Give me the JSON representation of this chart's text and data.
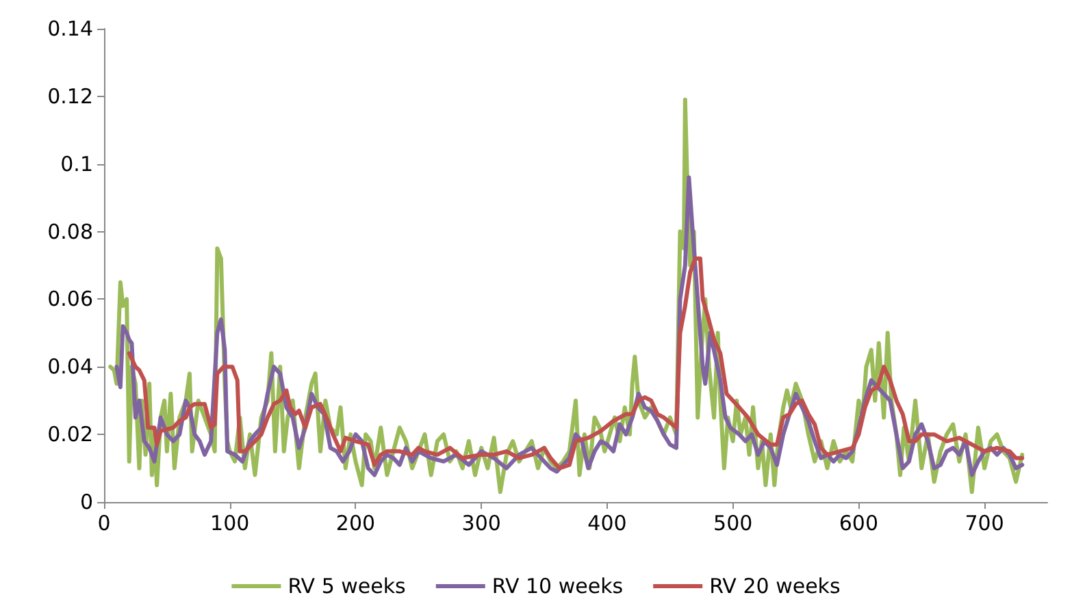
{
  "chart_data": {
    "type": "line",
    "legend": "bottom",
    "grid": false,
    "marker": "none",
    "line_style": "solid",
    "xlim": [
      0,
      750
    ],
    "xticks": [
      0,
      100,
      200,
      300,
      400,
      500,
      600,
      700
    ],
    "ylim": [
      0,
      0.14
    ],
    "yticks": [
      0,
      0.02,
      0.04,
      0.06,
      0.08,
      0.1,
      0.12,
      0.14
    ],
    "series": [
      {
        "name": "RV 5 weeks",
        "color": "#9bbb59",
        "x": [
          5,
          8,
          10,
          13,
          15,
          18,
          20,
          22,
          25,
          28,
          30,
          33,
          36,
          38,
          40,
          42,
          45,
          48,
          50,
          53,
          56,
          60,
          65,
          68,
          70,
          75,
          80,
          85,
          88,
          90,
          93,
          96,
          98,
          100,
          104,
          108,
          112,
          116,
          120,
          125,
          130,
          133,
          136,
          140,
          143,
          146,
          150,
          155,
          160,
          165,
          168,
          172,
          176,
          180,
          185,
          188,
          192,
          196,
          200,
          205,
          208,
          212,
          215,
          220,
          225,
          230,
          235,
          240,
          245,
          250,
          255,
          260,
          265,
          270,
          275,
          280,
          285,
          290,
          295,
          300,
          305,
          310,
          315,
          320,
          325,
          330,
          335,
          340,
          345,
          350,
          355,
          360,
          365,
          370,
          375,
          378,
          382,
          386,
          390,
          394,
          398,
          402,
          406,
          410,
          414,
          418,
          420,
          422,
          425,
          430,
          435,
          440,
          445,
          450,
          455,
          458,
          461,
          462,
          464,
          466,
          469,
          472,
          475,
          478,
          481,
          485,
          488,
          490,
          493,
          496,
          500,
          503,
          506,
          510,
          513,
          516,
          520,
          523,
          526,
          530,
          533,
          536,
          540,
          543,
          546,
          550,
          555,
          560,
          565,
          570,
          575,
          580,
          585,
          590,
          595,
          600,
          603,
          606,
          610,
          613,
          616,
          620,
          623,
          626,
          630,
          633,
          636,
          640,
          645,
          650,
          655,
          660,
          665,
          670,
          675,
          680,
          685,
          690,
          695,
          700,
          705,
          710,
          715,
          720,
          725,
          730
        ],
        "values": [
          0.04,
          0.039,
          0.035,
          0.065,
          0.058,
          0.06,
          0.012,
          0.04,
          0.035,
          0.01,
          0.03,
          0.014,
          0.035,
          0.008,
          0.02,
          0.005,
          0.025,
          0.03,
          0.015,
          0.032,
          0.01,
          0.025,
          0.03,
          0.038,
          0.015,
          0.03,
          0.025,
          0.02,
          0.015,
          0.075,
          0.072,
          0.035,
          0.018,
          0.015,
          0.012,
          0.025,
          0.01,
          0.02,
          0.008,
          0.025,
          0.03,
          0.044,
          0.015,
          0.04,
          0.015,
          0.025,
          0.03,
          0.01,
          0.025,
          0.035,
          0.038,
          0.015,
          0.03,
          0.022,
          0.02,
          0.028,
          0.01,
          0.02,
          0.012,
          0.005,
          0.02,
          0.018,
          0.01,
          0.022,
          0.008,
          0.015,
          0.022,
          0.018,
          0.01,
          0.015,
          0.02,
          0.008,
          0.018,
          0.02,
          0.012,
          0.015,
          0.01,
          0.018,
          0.008,
          0.016,
          0.01,
          0.019,
          0.003,
          0.014,
          0.018,
          0.012,
          0.015,
          0.018,
          0.01,
          0.016,
          0.012,
          0.01,
          0.012,
          0.015,
          0.03,
          0.008,
          0.02,
          0.01,
          0.025,
          0.022,
          0.015,
          0.02,
          0.025,
          0.018,
          0.028,
          0.02,
          0.035,
          0.043,
          0.03,
          0.025,
          0.028,
          0.024,
          0.02,
          0.025,
          0.02,
          0.08,
          0.075,
          0.119,
          0.09,
          0.07,
          0.08,
          0.025,
          0.045,
          0.06,
          0.04,
          0.025,
          0.05,
          0.03,
          0.01,
          0.025,
          0.018,
          0.03,
          0.02,
          0.025,
          0.014,
          0.028,
          0.01,
          0.018,
          0.005,
          0.02,
          0.005,
          0.018,
          0.028,
          0.033,
          0.028,
          0.035,
          0.03,
          0.02,
          0.012,
          0.018,
          0.01,
          0.018,
          0.012,
          0.015,
          0.012,
          0.03,
          0.025,
          0.04,
          0.045,
          0.03,
          0.047,
          0.025,
          0.05,
          0.03,
          0.02,
          0.008,
          0.022,
          0.012,
          0.03,
          0.01,
          0.02,
          0.006,
          0.015,
          0.02,
          0.023,
          0.012,
          0.02,
          0.003,
          0.022,
          0.01,
          0.018,
          0.02,
          0.015,
          0.013,
          0.006,
          0.014
        ]
      },
      {
        "name": "RV 10 weeks",
        "color": "#8064a2",
        "x": [
          10,
          13,
          15,
          18,
          20,
          22,
          25,
          28,
          32,
          36,
          40,
          45,
          50,
          55,
          60,
          65,
          68,
          72,
          76,
          80,
          85,
          90,
          93,
          96,
          98,
          104,
          110,
          116,
          120,
          125,
          130,
          135,
          140,
          145,
          150,
          155,
          160,
          165,
          170,
          175,
          180,
          185,
          190,
          195,
          200,
          205,
          210,
          215,
          220,
          225,
          230,
          235,
          240,
          245,
          250,
          260,
          270,
          280,
          290,
          300,
          310,
          320,
          330,
          340,
          350,
          355,
          360,
          370,
          375,
          380,
          385,
          390,
          395,
          400,
          405,
          410,
          415,
          420,
          425,
          430,
          435,
          440,
          445,
          450,
          455,
          458,
          462,
          465,
          468,
          472,
          476,
          478,
          482,
          486,
          490,
          494,
          498,
          505,
          510,
          515,
          520,
          525,
          530,
          535,
          540,
          545,
          550,
          555,
          560,
          565,
          570,
          575,
          580,
          585,
          590,
          595,
          600,
          605,
          610,
          615,
          620,
          625,
          630,
          635,
          640,
          645,
          650,
          655,
          660,
          665,
          670,
          675,
          680,
          685,
          690,
          695,
          700,
          705,
          710,
          715,
          720,
          725,
          730
        ],
        "values": [
          0.04,
          0.034,
          0.052,
          0.05,
          0.048,
          0.047,
          0.025,
          0.03,
          0.018,
          0.016,
          0.012,
          0.025,
          0.02,
          0.018,
          0.02,
          0.03,
          0.028,
          0.02,
          0.018,
          0.014,
          0.018,
          0.05,
          0.054,
          0.045,
          0.015,
          0.014,
          0.012,
          0.018,
          0.02,
          0.022,
          0.032,
          0.04,
          0.038,
          0.028,
          0.025,
          0.016,
          0.022,
          0.032,
          0.028,
          0.026,
          0.016,
          0.015,
          0.012,
          0.015,
          0.02,
          0.018,
          0.01,
          0.008,
          0.012,
          0.014,
          0.013,
          0.011,
          0.016,
          0.012,
          0.015,
          0.013,
          0.012,
          0.014,
          0.011,
          0.015,
          0.013,
          0.01,
          0.014,
          0.016,
          0.012,
          0.01,
          0.009,
          0.013,
          0.02,
          0.018,
          0.01,
          0.015,
          0.018,
          0.017,
          0.015,
          0.023,
          0.02,
          0.025,
          0.032,
          0.028,
          0.027,
          0.024,
          0.02,
          0.017,
          0.016,
          0.06,
          0.07,
          0.096,
          0.08,
          0.06,
          0.04,
          0.035,
          0.05,
          0.043,
          0.036,
          0.025,
          0.022,
          0.02,
          0.018,
          0.02,
          0.014,
          0.018,
          0.016,
          0.011,
          0.02,
          0.026,
          0.032,
          0.028,
          0.024,
          0.018,
          0.013,
          0.014,
          0.012,
          0.014,
          0.013,
          0.015,
          0.022,
          0.03,
          0.036,
          0.034,
          0.032,
          0.03,
          0.02,
          0.01,
          0.012,
          0.02,
          0.023,
          0.018,
          0.01,
          0.011,
          0.015,
          0.016,
          0.014,
          0.018,
          0.008,
          0.012,
          0.015,
          0.016,
          0.014,
          0.016,
          0.014,
          0.01,
          0.011
        ]
      },
      {
        "name": "RV 20 weeks",
        "color": "#c0504d",
        "x": [
          20,
          25,
          28,
          32,
          35,
          40,
          42,
          45,
          55,
          60,
          65,
          68,
          72,
          80,
          85,
          88,
          90,
          95,
          102,
          106,
          108,
          112,
          120,
          125,
          130,
          135,
          140,
          145,
          148,
          152,
          155,
          160,
          165,
          172,
          178,
          182,
          188,
          192,
          200,
          210,
          215,
          220,
          225,
          235,
          245,
          250,
          255,
          265,
          275,
          285,
          300,
          310,
          320,
          330,
          340,
          350,
          355,
          362,
          370,
          375,
          385,
          395,
          405,
          415,
          420,
          425,
          430,
          435,
          440,
          445,
          455,
          458,
          462,
          466,
          470,
          474,
          476,
          480,
          485,
          490,
          495,
          500,
          505,
          512,
          520,
          530,
          535,
          540,
          545,
          550,
          555,
          560,
          565,
          570,
          575,
          585,
          595,
          600,
          605,
          610,
          615,
          620,
          625,
          630,
          635,
          640,
          645,
          650,
          660,
          670,
          680,
          690,
          700,
          710,
          720,
          725,
          730
        ],
        "values": [
          0.044,
          0.04,
          0.039,
          0.036,
          0.022,
          0.022,
          0.017,
          0.021,
          0.022,
          0.024,
          0.025,
          0.028,
          0.029,
          0.029,
          0.022,
          0.023,
          0.038,
          0.04,
          0.04,
          0.036,
          0.015,
          0.015,
          0.018,
          0.02,
          0.025,
          0.029,
          0.03,
          0.033,
          0.028,
          0.026,
          0.027,
          0.022,
          0.028,
          0.029,
          0.024,
          0.02,
          0.015,
          0.019,
          0.018,
          0.017,
          0.011,
          0.014,
          0.015,
          0.015,
          0.014,
          0.016,
          0.015,
          0.014,
          0.016,
          0.013,
          0.014,
          0.014,
          0.015,
          0.013,
          0.014,
          0.016,
          0.013,
          0.01,
          0.011,
          0.018,
          0.019,
          0.021,
          0.024,
          0.026,
          0.026,
          0.03,
          0.031,
          0.03,
          0.026,
          0.025,
          0.022,
          0.05,
          0.058,
          0.068,
          0.072,
          0.072,
          0.06,
          0.055,
          0.048,
          0.044,
          0.032,
          0.03,
          0.028,
          0.025,
          0.02,
          0.017,
          0.017,
          0.025,
          0.026,
          0.029,
          0.03,
          0.026,
          0.023,
          0.016,
          0.014,
          0.015,
          0.016,
          0.02,
          0.028,
          0.033,
          0.034,
          0.04,
          0.036,
          0.03,
          0.026,
          0.018,
          0.018,
          0.02,
          0.02,
          0.018,
          0.019,
          0.017,
          0.015,
          0.016,
          0.015,
          0.013,
          0.013
        ]
      }
    ]
  }
}
